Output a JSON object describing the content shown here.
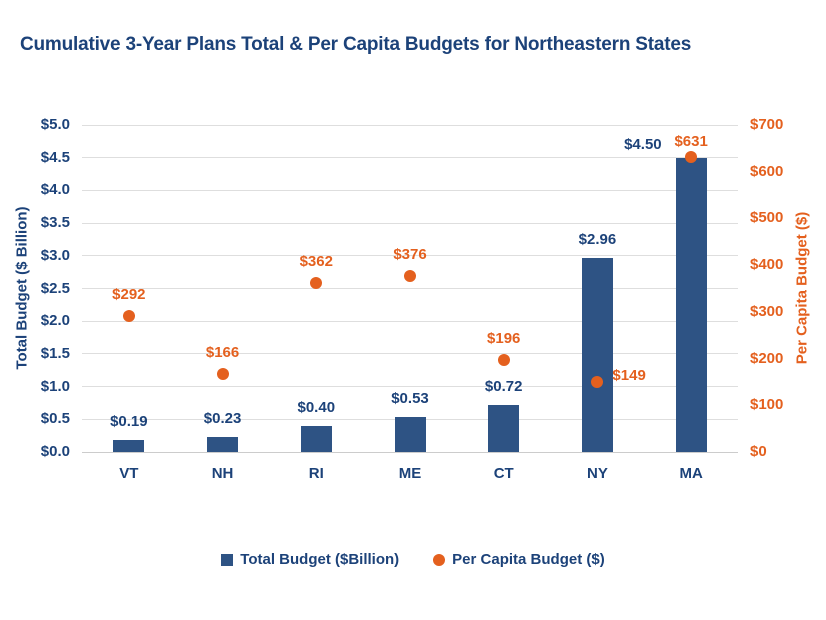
{
  "title": "Cumulative 3-Year Plans Total & Per Capita Budgets for Northeastern States",
  "colors": {
    "navy_text": "#1C4279",
    "bar_fill": "#2E5384",
    "orange": "#E4601E",
    "grid": "#DEDEDE",
    "baseline": "#CCCCCC"
  },
  "legend": {
    "items": [
      {
        "label": "Total Budget ($Billion)",
        "marker": "square-icon",
        "color": "#2E5384"
      },
      {
        "label": "Per Capita Budget ($)",
        "marker": "circle-icon",
        "color": "#E4601E"
      }
    ]
  },
  "chart_data": {
    "type": "bar",
    "title": "Cumulative 3-Year Plans Total & Per Capita Budgets for Northeastern States",
    "categories": [
      "VT",
      "NH",
      "RI",
      "ME",
      "CT",
      "NY",
      "MA"
    ],
    "series": [
      {
        "name": "Total Budget ($Billion)",
        "type": "bar",
        "axis": "left",
        "values": [
          0.19,
          0.23,
          0.4,
          0.53,
          0.72,
          2.96,
          4.5
        ],
        "data_labels": [
          "$0.19",
          "$0.23",
          "$0.40",
          "$0.53",
          "$0.72",
          "$2.96",
          "$4.50"
        ],
        "label_placement": [
          "above",
          "above",
          "above",
          "above",
          "above",
          "above",
          "left"
        ]
      },
      {
        "name": "Per Capita Budget ($)",
        "type": "scatter",
        "axis": "right",
        "values": [
          292,
          166,
          362,
          376,
          196,
          149,
          631
        ],
        "data_labels": [
          "$292",
          "$166",
          "$362",
          "$376",
          "$196",
          "$149",
          "$631"
        ],
        "label_placement": [
          "above",
          "above",
          "above",
          "above",
          "above",
          "right",
          "above-tight"
        ]
      }
    ],
    "left_axis": {
      "title": "Total Budget ($ Billion)",
      "min": 0,
      "max": 5,
      "step": 0.5,
      "tick_labels": [
        "$0.0",
        "$0.5",
        "$1.0",
        "$1.5",
        "$2.0",
        "$2.5",
        "$3.0",
        "$3.5",
        "$4.0",
        "$4.5",
        "$5.0"
      ]
    },
    "right_axis": {
      "title": "Per Capita Budget ($)",
      "min": 0,
      "max": 700,
      "step": 100,
      "tick_labels": [
        "$0",
        "$100",
        "$200",
        "$300",
        "$400",
        "$500",
        "$600",
        "$700"
      ]
    },
    "grid": true,
    "legend_position": "bottom"
  }
}
